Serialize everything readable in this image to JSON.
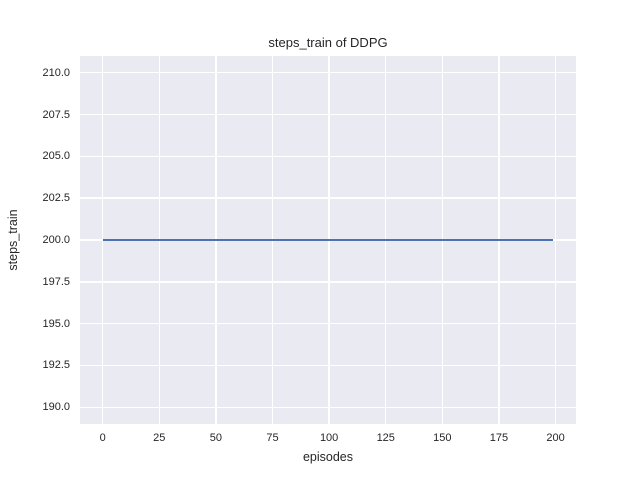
{
  "style": {
    "figure_background": "#ffffff",
    "plot_background": "#eaeaf2",
    "grid_color": "#ffffff",
    "text_color": "#262626"
  },
  "chart_data": {
    "type": "line",
    "title": "steps_train of DDPG",
    "xlabel": "episodes",
    "ylabel": "steps_train",
    "x_ticks": [
      0,
      25,
      50,
      75,
      100,
      125,
      150,
      175,
      200
    ],
    "y_ticks": [
      210.0,
      207.5,
      205.0,
      202.5,
      200.0,
      197.5,
      195.0,
      192.5,
      190.0
    ],
    "y_tick_labels": [
      "210.0",
      "207.5",
      "205.0",
      "202.5",
      "200.0",
      "197.5",
      "195.0",
      "192.5",
      "190.0"
    ],
    "xlim": [
      -10,
      209
    ],
    "ylim": [
      189,
      211
    ],
    "grid": true,
    "legend": null,
    "series": [
      {
        "name": "steps_train",
        "color": "#4c72b0",
        "x": [
          0,
          199
        ],
        "y": [
          200,
          200
        ]
      }
    ]
  }
}
